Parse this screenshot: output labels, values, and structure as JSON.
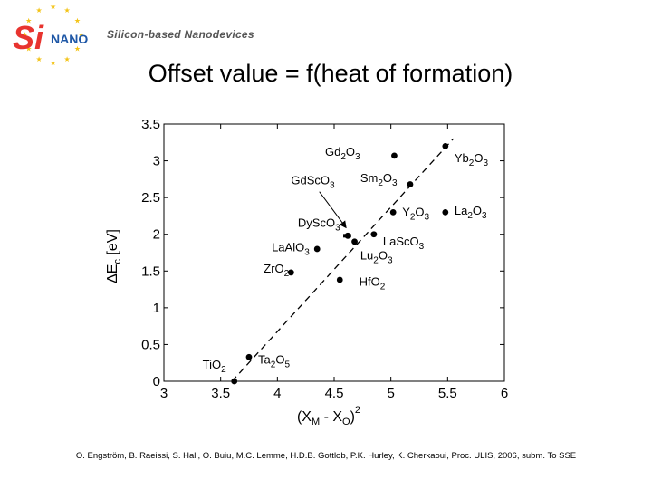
{
  "header": {
    "logo": {
      "brand": "SiNANO",
      "tagline": "Silicon-based Nanodevices"
    },
    "title": "Offset value = f(heat of formation)"
  },
  "citation": "O. Engström, B. Raeissi, S. Hall, O. Buiu, M.C. Lemme, H.D.B. Gottlob, P.K. Hurley, K. Cherkaoui, Proc. ULIS, 2006, subm. To SSE",
  "colors": {
    "logo_red": "#e8342f",
    "logo_blue": "#1e57a6",
    "logo_star": "#f3c316"
  },
  "chart_data": {
    "type": "scatter",
    "xlabel": "(XM - XO)^2",
    "ylabel": "ΔEc [eV]",
    "xlim": [
      3,
      6
    ],
    "ylim": [
      0,
      3.5
    ],
    "xticks": [
      3,
      3.5,
      4,
      4.5,
      5,
      5.5,
      6
    ],
    "yticks": [
      0,
      0.5,
      1,
      1.5,
      2,
      2.5,
      3,
      3.5
    ],
    "fit_line": {
      "x": [
        3.6,
        5.55
      ],
      "y": [
        0.0,
        3.3
      ],
      "style": "dashed"
    },
    "points": [
      {
        "x": 3.62,
        "y": 0.0
      },
      {
        "x": 3.75,
        "y": 0.33
      },
      {
        "x": 4.12,
        "y": 1.48
      },
      {
        "x": 4.35,
        "y": 1.8
      },
      {
        "x": 4.55,
        "y": 1.38
      },
      {
        "x": 4.62,
        "y": 1.98
      },
      {
        "x": 4.68,
        "y": 1.9
      },
      {
        "x": 4.85,
        "y": 2.0
      },
      {
        "x": 5.02,
        "y": 2.3
      },
      {
        "x": 5.03,
        "y": 3.07
      },
      {
        "x": 5.17,
        "y": 2.68
      },
      {
        "x": 5.48,
        "y": 2.3
      },
      {
        "x": 5.48,
        "y": 3.2
      }
    ],
    "labels": [
      {
        "base": "Gd",
        "sub1": "2",
        "mid": "O",
        "sub2": "3",
        "x": 4.42,
        "y": 3.07
      },
      {
        "base": "Yb",
        "sub1": "2",
        "mid": "O",
        "sub2": "3",
        "x": 5.56,
        "y": 2.98
      },
      {
        "base": "GdScO",
        "sub1": "",
        "mid": "",
        "sub2": "3",
        "x": 4.12,
        "y": 2.68
      },
      {
        "base": "Sm",
        "sub1": "2",
        "mid": "O",
        "sub2": "3",
        "x": 4.73,
        "y": 2.71
      },
      {
        "base": "La",
        "sub1": "2",
        "mid": "O",
        "sub2": "3",
        "x": 5.56,
        "y": 2.27
      },
      {
        "base": "Y",
        "sub1": "2",
        "mid": "O",
        "sub2": "3",
        "x": 5.1,
        "y": 2.25
      },
      {
        "base": "DyScO",
        "sub1": "",
        "mid": "",
        "sub2": "3",
        "x": 4.18,
        "y": 2.1
      },
      {
        "base": "LaScO",
        "sub1": "",
        "mid": "",
        "sub2": "3",
        "x": 4.93,
        "y": 1.85
      },
      {
        "base": "LaAlO",
        "sub1": "",
        "mid": "",
        "sub2": "3",
        "x": 3.95,
        "y": 1.77
      },
      {
        "base": "Lu",
        "sub1": "2",
        "mid": "O",
        "sub2": "3",
        "x": 4.73,
        "y": 1.66
      },
      {
        "base": "ZrO",
        "sub1": "",
        "mid": "",
        "sub2": "2",
        "x": 3.88,
        "y": 1.48
      },
      {
        "base": "HfO",
        "sub1": "",
        "mid": "",
        "sub2": "2",
        "x": 4.72,
        "y": 1.3
      },
      {
        "base": "TiO",
        "sub1": "",
        "mid": "",
        "sub2": "2",
        "x": 3.34,
        "y": 0.17
      },
      {
        "base": "Ta",
        "sub1": "2",
        "mid": "O",
        "sub2": "5",
        "x": 3.83,
        "y": 0.24
      }
    ],
    "annotation": {
      "text_ref": "GdScO3",
      "from": {
        "x": 4.37,
        "y": 2.58
      },
      "to": {
        "x": 4.6,
        "y": 2.1
      }
    }
  }
}
